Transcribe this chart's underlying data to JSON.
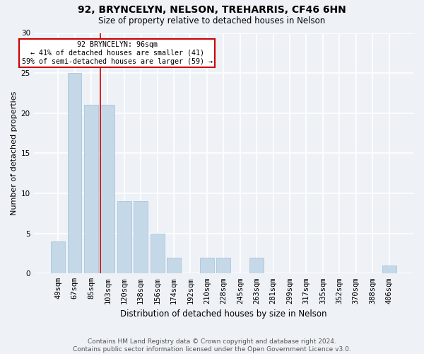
{
  "title": "92, BRYNCELYN, NELSON, TREHARRIS, CF46 6HN",
  "subtitle": "Size of property relative to detached houses in Nelson",
  "xlabel": "Distribution of detached houses by size in Nelson",
  "ylabel": "Number of detached properties",
  "categories": [
    "49sqm",
    "67sqm",
    "85sqm",
    "103sqm",
    "120sqm",
    "138sqm",
    "156sqm",
    "174sqm",
    "192sqm",
    "210sqm",
    "228sqm",
    "245sqm",
    "263sqm",
    "281sqm",
    "299sqm",
    "317sqm",
    "335sqm",
    "352sqm",
    "370sqm",
    "388sqm",
    "406sqm"
  ],
  "values": [
    4,
    25,
    21,
    21,
    9,
    9,
    5,
    2,
    0,
    2,
    2,
    0,
    2,
    0,
    0,
    0,
    0,
    0,
    0,
    0,
    1
  ],
  "bar_color": "#c5d8e8",
  "bar_edge_color": "#a0c0d8",
  "property_line_x": 2.575,
  "annotation_text": "92 BRYNCELYN: 96sqm\n← 41% of detached houses are smaller (41)\n59% of semi-detached houses are larger (59) →",
  "annotation_box_color": "#ffffff",
  "annotation_box_edge_color": "#cc0000",
  "footer_text": "Contains HM Land Registry data © Crown copyright and database right 2024.\nContains public sector information licensed under the Open Government Licence v3.0.",
  "ylim": [
    0,
    30
  ],
  "yticks": [
    0,
    5,
    10,
    15,
    20,
    25,
    30
  ],
  "background_color": "#eef2f7",
  "grid_color": "#ffffff",
  "property_line_color": "#cc0000",
  "title_fontsize": 10,
  "subtitle_fontsize": 8.5,
  "ylabel_fontsize": 8,
  "xlabel_fontsize": 8.5,
  "tick_fontsize": 7.5,
  "footer_fontsize": 6.5
}
